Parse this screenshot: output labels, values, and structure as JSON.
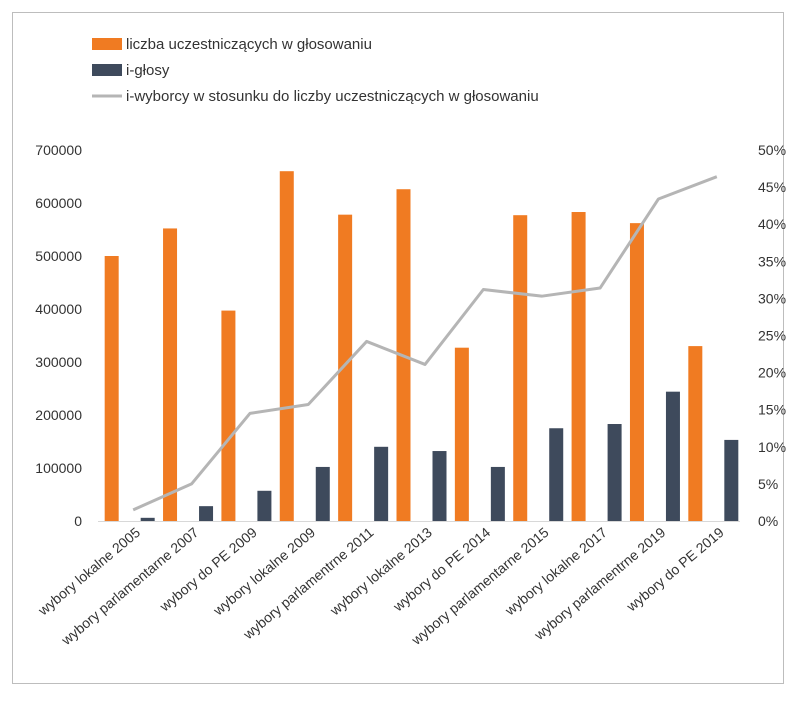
{
  "chart_data": {
    "type": "bar",
    "categories": [
      "wybory lokalne 2005",
      "wybory parlamentarne 2007",
      "wybory do PE 2009",
      "wybory lokalne 2009",
      "wybory parlamentrne 2011",
      "wybory lokalne 2013",
      "wybory do PE 2014",
      "wybory parlamentarne 2015",
      "wybory lokalne 2017",
      "wybory parlamentrne 2019",
      "wybory do PE 2019"
    ],
    "series": [
      {
        "name": "liczba uczestniczących w głosowaniu",
        "kind": "bar",
        "axis": "left",
        "color": "#F07B22",
        "values": [
          500000,
          552000,
          397000,
          660000,
          578000,
          626000,
          327000,
          577000,
          583000,
          562000,
          330000
        ]
      },
      {
        "name": "i-głosy",
        "kind": "bar",
        "axis": "left",
        "color": "#3E4A5C",
        "values": [
          6000,
          28000,
          57000,
          102000,
          140000,
          132000,
          102000,
          175000,
          183000,
          244000,
          153000
        ]
      },
      {
        "name": "i-wyborcy w stosunku do liczby uczestniczących w głosowaniu",
        "kind": "line",
        "axis": "right",
        "color": "#B5B5B5",
        "values": [
          1.5,
          5,
          14.5,
          15.7,
          24.2,
          21.1,
          31.2,
          30.3,
          31.4,
          43.4,
          46.4
        ]
      }
    ],
    "y_left": {
      "min": 0,
      "max": 700000,
      "ticks": [
        "0",
        "100000",
        "200000",
        "300000",
        "400000",
        "500000",
        "600000",
        "700000"
      ]
    },
    "y_right": {
      "min": 0,
      "max": 50,
      "ticks": [
        "0%",
        "5%",
        "10%",
        "15%",
        "20%",
        "25%",
        "30%",
        "35%",
        "40%",
        "45%",
        "50%"
      ]
    },
    "legend_position": "top-left",
    "grid": false
  }
}
